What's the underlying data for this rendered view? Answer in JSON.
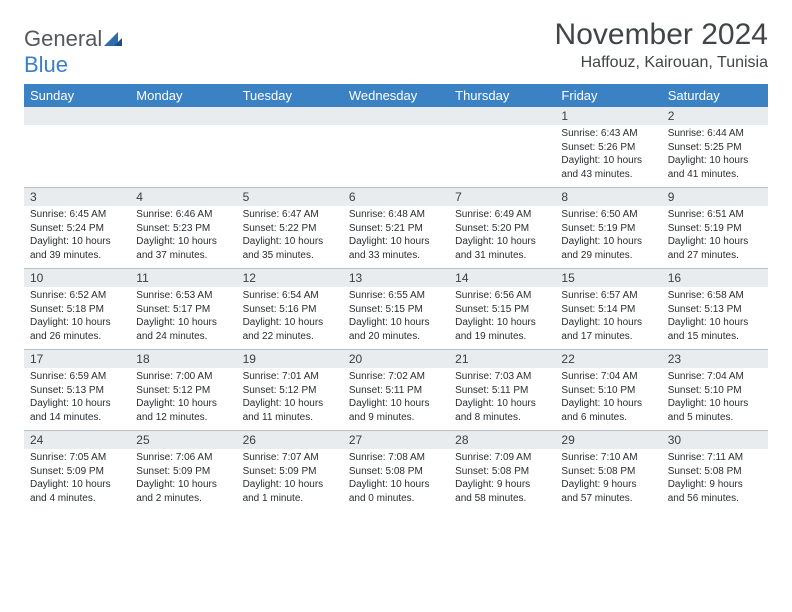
{
  "logo": {
    "word1": "General",
    "word2": "Blue"
  },
  "title": {
    "month": "November 2024",
    "location": "Haffouz, Kairouan, Tunisia"
  },
  "colors": {
    "header_bg": "#3b82c4",
    "header_text": "#ffffff",
    "numrow_bg": "#e9ecef",
    "text": "#2a2d30",
    "title_text": "#414549",
    "logo_gray": "#56595c",
    "logo_blue": "#3b7fc4"
  },
  "daynames": [
    "Sunday",
    "Monday",
    "Tuesday",
    "Wednesday",
    "Thursday",
    "Friday",
    "Saturday"
  ],
  "weeks": [
    [
      {
        "n": "",
        "sr": "",
        "ss": "",
        "dl": ""
      },
      {
        "n": "",
        "sr": "",
        "ss": "",
        "dl": ""
      },
      {
        "n": "",
        "sr": "",
        "ss": "",
        "dl": ""
      },
      {
        "n": "",
        "sr": "",
        "ss": "",
        "dl": ""
      },
      {
        "n": "",
        "sr": "",
        "ss": "",
        "dl": ""
      },
      {
        "n": "1",
        "sr": "Sunrise: 6:43 AM",
        "ss": "Sunset: 5:26 PM",
        "dl": "Daylight: 10 hours and 43 minutes."
      },
      {
        "n": "2",
        "sr": "Sunrise: 6:44 AM",
        "ss": "Sunset: 5:25 PM",
        "dl": "Daylight: 10 hours and 41 minutes."
      }
    ],
    [
      {
        "n": "3",
        "sr": "Sunrise: 6:45 AM",
        "ss": "Sunset: 5:24 PM",
        "dl": "Daylight: 10 hours and 39 minutes."
      },
      {
        "n": "4",
        "sr": "Sunrise: 6:46 AM",
        "ss": "Sunset: 5:23 PM",
        "dl": "Daylight: 10 hours and 37 minutes."
      },
      {
        "n": "5",
        "sr": "Sunrise: 6:47 AM",
        "ss": "Sunset: 5:22 PM",
        "dl": "Daylight: 10 hours and 35 minutes."
      },
      {
        "n": "6",
        "sr": "Sunrise: 6:48 AM",
        "ss": "Sunset: 5:21 PM",
        "dl": "Daylight: 10 hours and 33 minutes."
      },
      {
        "n": "7",
        "sr": "Sunrise: 6:49 AM",
        "ss": "Sunset: 5:20 PM",
        "dl": "Daylight: 10 hours and 31 minutes."
      },
      {
        "n": "8",
        "sr": "Sunrise: 6:50 AM",
        "ss": "Sunset: 5:19 PM",
        "dl": "Daylight: 10 hours and 29 minutes."
      },
      {
        "n": "9",
        "sr": "Sunrise: 6:51 AM",
        "ss": "Sunset: 5:19 PM",
        "dl": "Daylight: 10 hours and 27 minutes."
      }
    ],
    [
      {
        "n": "10",
        "sr": "Sunrise: 6:52 AM",
        "ss": "Sunset: 5:18 PM",
        "dl": "Daylight: 10 hours and 26 minutes."
      },
      {
        "n": "11",
        "sr": "Sunrise: 6:53 AM",
        "ss": "Sunset: 5:17 PM",
        "dl": "Daylight: 10 hours and 24 minutes."
      },
      {
        "n": "12",
        "sr": "Sunrise: 6:54 AM",
        "ss": "Sunset: 5:16 PM",
        "dl": "Daylight: 10 hours and 22 minutes."
      },
      {
        "n": "13",
        "sr": "Sunrise: 6:55 AM",
        "ss": "Sunset: 5:15 PM",
        "dl": "Daylight: 10 hours and 20 minutes."
      },
      {
        "n": "14",
        "sr": "Sunrise: 6:56 AM",
        "ss": "Sunset: 5:15 PM",
        "dl": "Daylight: 10 hours and 19 minutes."
      },
      {
        "n": "15",
        "sr": "Sunrise: 6:57 AM",
        "ss": "Sunset: 5:14 PM",
        "dl": "Daylight: 10 hours and 17 minutes."
      },
      {
        "n": "16",
        "sr": "Sunrise: 6:58 AM",
        "ss": "Sunset: 5:13 PM",
        "dl": "Daylight: 10 hours and 15 minutes."
      }
    ],
    [
      {
        "n": "17",
        "sr": "Sunrise: 6:59 AM",
        "ss": "Sunset: 5:13 PM",
        "dl": "Daylight: 10 hours and 14 minutes."
      },
      {
        "n": "18",
        "sr": "Sunrise: 7:00 AM",
        "ss": "Sunset: 5:12 PM",
        "dl": "Daylight: 10 hours and 12 minutes."
      },
      {
        "n": "19",
        "sr": "Sunrise: 7:01 AM",
        "ss": "Sunset: 5:12 PM",
        "dl": "Daylight: 10 hours and 11 minutes."
      },
      {
        "n": "20",
        "sr": "Sunrise: 7:02 AM",
        "ss": "Sunset: 5:11 PM",
        "dl": "Daylight: 10 hours and 9 minutes."
      },
      {
        "n": "21",
        "sr": "Sunrise: 7:03 AM",
        "ss": "Sunset: 5:11 PM",
        "dl": "Daylight: 10 hours and 8 minutes."
      },
      {
        "n": "22",
        "sr": "Sunrise: 7:04 AM",
        "ss": "Sunset: 5:10 PM",
        "dl": "Daylight: 10 hours and 6 minutes."
      },
      {
        "n": "23",
        "sr": "Sunrise: 7:04 AM",
        "ss": "Sunset: 5:10 PM",
        "dl": "Daylight: 10 hours and 5 minutes."
      }
    ],
    [
      {
        "n": "24",
        "sr": "Sunrise: 7:05 AM",
        "ss": "Sunset: 5:09 PM",
        "dl": "Daylight: 10 hours and 4 minutes."
      },
      {
        "n": "25",
        "sr": "Sunrise: 7:06 AM",
        "ss": "Sunset: 5:09 PM",
        "dl": "Daylight: 10 hours and 2 minutes."
      },
      {
        "n": "26",
        "sr": "Sunrise: 7:07 AM",
        "ss": "Sunset: 5:09 PM",
        "dl": "Daylight: 10 hours and 1 minute."
      },
      {
        "n": "27",
        "sr": "Sunrise: 7:08 AM",
        "ss": "Sunset: 5:08 PM",
        "dl": "Daylight: 10 hours and 0 minutes."
      },
      {
        "n": "28",
        "sr": "Sunrise: 7:09 AM",
        "ss": "Sunset: 5:08 PM",
        "dl": "Daylight: 9 hours and 58 minutes."
      },
      {
        "n": "29",
        "sr": "Sunrise: 7:10 AM",
        "ss": "Sunset: 5:08 PM",
        "dl": "Daylight: 9 hours and 57 minutes."
      },
      {
        "n": "30",
        "sr": "Sunrise: 7:11 AM",
        "ss": "Sunset: 5:08 PM",
        "dl": "Daylight: 9 hours and 56 minutes."
      }
    ]
  ]
}
